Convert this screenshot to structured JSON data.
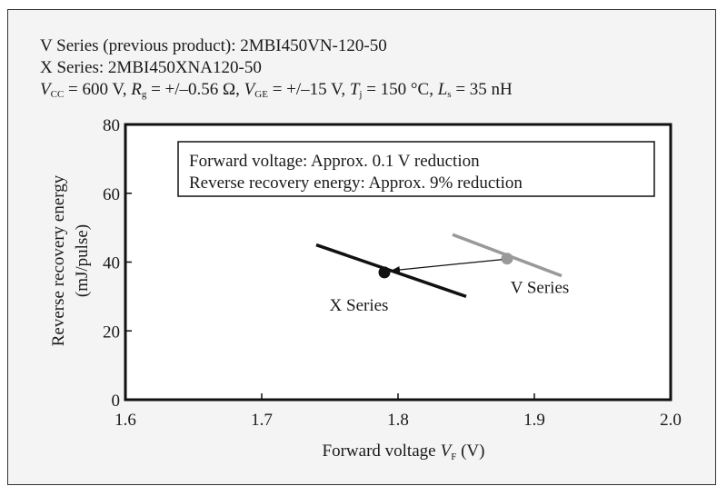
{
  "header": {
    "line1": "V Series (previous product):  2MBI450VN-120-50",
    "line2": "X Series:  2MBI450XNA120-50",
    "line3": {
      "vcc_sym": "V",
      "vcc_sub": "CC",
      "vcc_val": " = 600 V, ",
      "rg_sym": "R",
      "rg_sub": "g",
      "rg_val": " = +/–0.56 Ω, ",
      "vge_sym": "V",
      "vge_sub": "GE",
      "vge_val": " = +/–15 V, ",
      "tj_sym": "T",
      "tj_sub": "j",
      "tj_val": " = 150 °C, ",
      "ls_sym": "L",
      "ls_sub": "s",
      "ls_val": " = 35 nH"
    }
  },
  "chart_data": {
    "type": "line",
    "xlabel": "Forward voltage",
    "xlabel_sym": "V",
    "xlabel_sub": "F",
    "xlabel_unit": " (V)",
    "ylabel_line1": "Reverse recovery  energy",
    "ylabel_line2": "(mJ/pulse)",
    "xlim": [
      1.6,
      2.0
    ],
    "ylim": [
      0,
      80
    ],
    "xticks": [
      "1.6",
      "1.7",
      "1.8",
      "1.9",
      "2.0"
    ],
    "yticks": [
      "0",
      "20",
      "40",
      "60",
      "80"
    ],
    "grid": false,
    "annotation_box": [
      "Forward voltage: Approx. 0.1 V reduction",
      "Reverse recovery energy: Approx. 9% reduction"
    ],
    "series": [
      {
        "name": "X Series",
        "color": "#111111",
        "x": [
          1.74,
          1.85
        ],
        "y": [
          45,
          30
        ],
        "marker": {
          "x": 1.79,
          "y": 37
        }
      },
      {
        "name": "V Series",
        "color": "#999999",
        "x": [
          1.84,
          1.92
        ],
        "y": [
          48,
          36
        ],
        "marker": {
          "x": 1.88,
          "y": 41
        }
      }
    ],
    "arrow": {
      "from": {
        "x": 1.88,
        "y": 41
      },
      "to": {
        "x": 1.79,
        "y": 37
      }
    }
  }
}
